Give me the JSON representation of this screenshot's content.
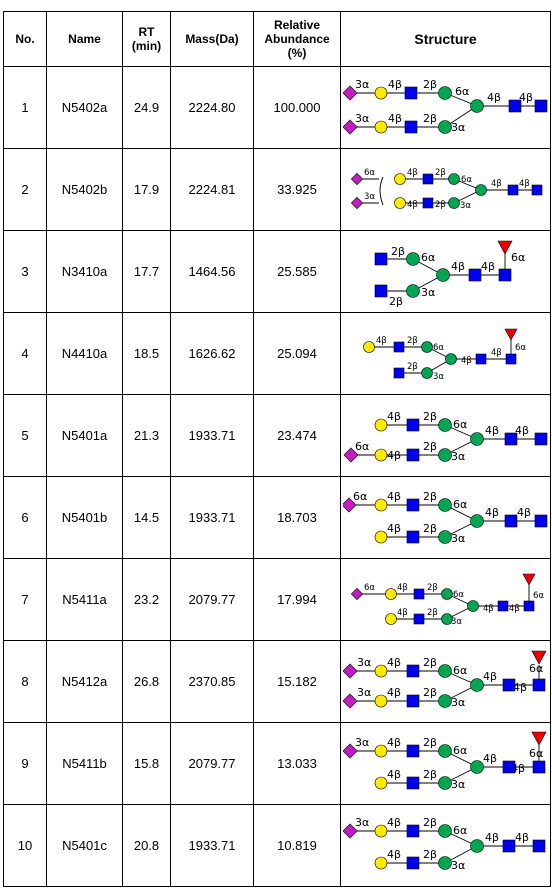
{
  "headers": {
    "no": "No.",
    "name": "Name",
    "rt": "RT",
    "rt_unit": "(min)",
    "mass": "Mass(Da)",
    "abund1": "Relative",
    "abund2": "Abundance",
    "abund3": "(%)",
    "structure": "Structure"
  },
  "rows": [
    {
      "no": "1",
      "name": "N5402a",
      "rt": "24.9",
      "mass": "2224.80",
      "abundance": "100.000"
    },
    {
      "no": "2",
      "name": "N5402b",
      "rt": "17.9",
      "mass": "2224.81",
      "abundance": "33.925"
    },
    {
      "no": "3",
      "name": "N3410a",
      "rt": "17.7",
      "mass": "1464.56",
      "abundance": "25.585"
    },
    {
      "no": "4",
      "name": "N4410a",
      "rt": "18.5",
      "mass": "1626.62",
      "abundance": "25.094"
    },
    {
      "no": "5",
      "name": "N5401a",
      "rt": "21.3",
      "mass": "1933.71",
      "abundance": "23.474"
    },
    {
      "no": "6",
      "name": "N5401b",
      "rt": "14.5",
      "mass": "1933.71",
      "abundance": "18.703"
    },
    {
      "no": "7",
      "name": "N5411a",
      "rt": "23.2",
      "mass": "2079.77",
      "abundance": "17.994"
    },
    {
      "no": "8",
      "name": "N5412a",
      "rt": "26.8",
      "mass": "2370.85",
      "abundance": "15.182"
    },
    {
      "no": "9",
      "name": "N5411b",
      "rt": "15.8",
      "mass": "2079.77",
      "abundance": "13.033"
    },
    {
      "no": "10",
      "name": "N5401c",
      "rt": "20.8",
      "mass": "1933.71",
      "abundance": "10.819"
    }
  ],
  "linkages": {
    "a3": "3α",
    "a6": "6α",
    "b2": "2β",
    "b4": "4β"
  },
  "symbol_colors": {
    "glcnac": "#0000ee",
    "mannose": "#00a651",
    "galactose": "#ffeb00",
    "sialic_acid": "#c01ec0",
    "fucose": "#ee0000"
  }
}
